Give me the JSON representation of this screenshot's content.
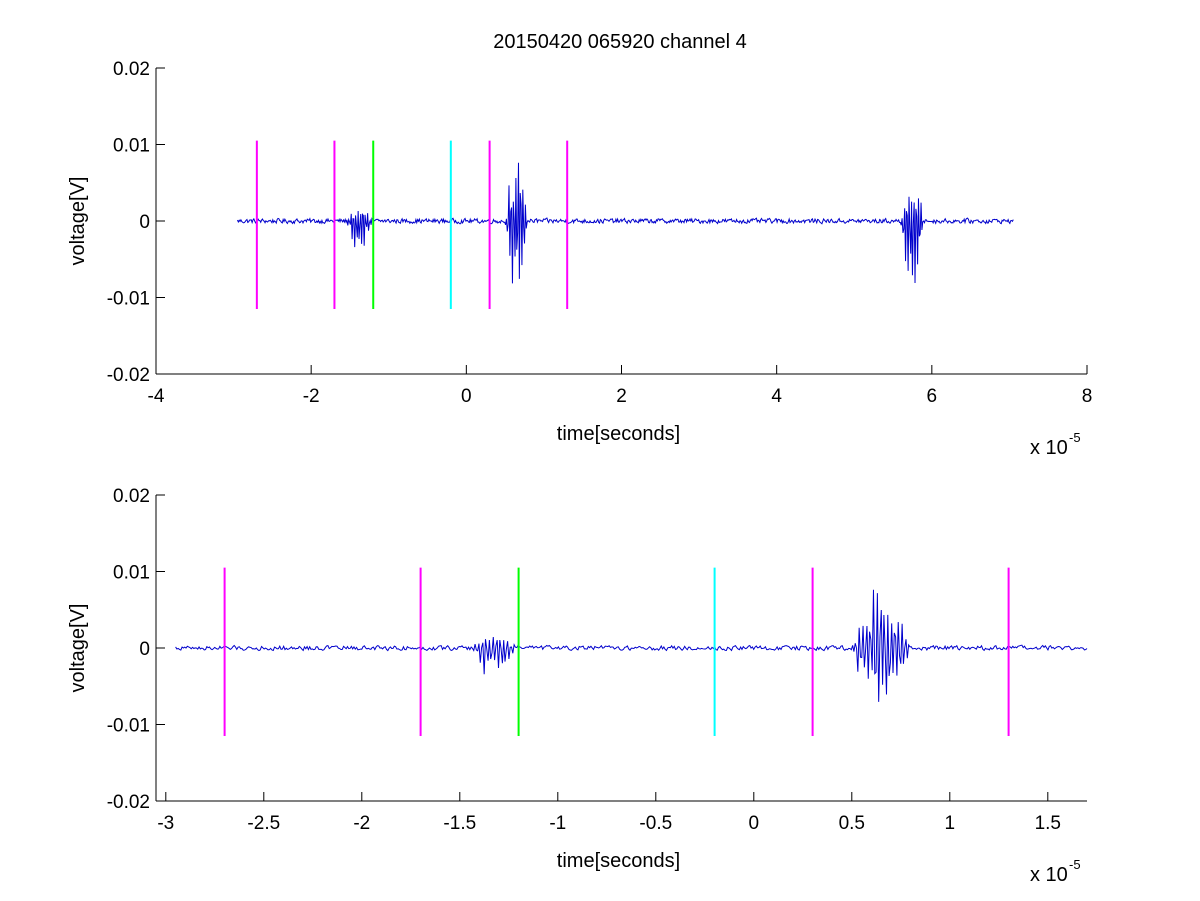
{
  "figure": {
    "title": "20150420 065920 channel 4"
  },
  "chart_data": [
    {
      "type": "line",
      "title": "20150420 065920 channel 4",
      "xlabel": "time[seconds]",
      "ylabel": "voltage[V]",
      "x_multiplier_label": "x 10",
      "x_multiplier_exponent": "-5",
      "xlim": [
        -4,
        8
      ],
      "ylim": [
        -0.02,
        0.02
      ],
      "xticks": [
        -4,
        -2,
        0,
        2,
        4,
        6,
        8
      ],
      "xtick_labels": [
        "-4",
        "-2",
        "0",
        "2",
        "4",
        "6",
        "8"
      ],
      "yticks": [
        0.02,
        0.01,
        0,
        -0.01,
        -0.02
      ],
      "ytick_labels": [
        "0.02",
        "0.01",
        "0",
        "-0.01",
        "-0.02"
      ],
      "grid": false,
      "series_color": "#0000cc",
      "signal": {
        "x_range": [
          -2.95,
          7.05
        ],
        "baseline": 0,
        "noise": 0.0004,
        "bursts": [
          {
            "x": [
              -1.55,
              -1.2
            ],
            "peak_pos": 0.0018,
            "peak_neg": -0.0044
          },
          {
            "x": [
              0.5,
              0.8
            ],
            "peak_pos": 0.0097,
            "peak_neg": -0.0098
          },
          {
            "x": [
              5.6,
              5.9
            ],
            "peak_pos": 0.0058,
            "peak_neg": -0.0104
          }
        ]
      },
      "vlines": [
        {
          "x": -2.7,
          "color": "#ff00ff",
          "ymin": -0.0115,
          "ymax": 0.0105
        },
        {
          "x": -1.7,
          "color": "#ff00ff",
          "ymin": -0.0115,
          "ymax": 0.0105
        },
        {
          "x": -1.2,
          "color": "#00ff00",
          "ymin": -0.0115,
          "ymax": 0.0105
        },
        {
          "x": -0.2,
          "color": "#00ffff",
          "ymin": -0.0115,
          "ymax": 0.0105
        },
        {
          "x": 0.3,
          "color": "#ff00ff",
          "ymin": -0.0115,
          "ymax": 0.0105
        },
        {
          "x": 1.3,
          "color": "#ff00ff",
          "ymin": -0.0115,
          "ymax": 0.0105
        }
      ]
    },
    {
      "type": "line",
      "title": "",
      "xlabel": "time[seconds]",
      "ylabel": "voltage[V]",
      "x_multiplier_label": "x 10",
      "x_multiplier_exponent": "-5",
      "xlim": [
        -3.05,
        1.7
      ],
      "ylim": [
        -0.02,
        0.02
      ],
      "xticks": [
        -3,
        -2.5,
        -2,
        -1.5,
        -1,
        -0.5,
        0,
        0.5,
        1,
        1.5
      ],
      "xtick_labels": [
        "-3",
        "-2.5",
        "-2",
        "-1.5",
        "-1",
        "-0.5",
        "0",
        "0.5",
        "1",
        "1.5"
      ],
      "yticks": [
        0.02,
        0.01,
        0,
        -0.01,
        -0.02
      ],
      "ytick_labels": [
        "0.02",
        "0.01",
        "0",
        "-0.01",
        "-0.02"
      ],
      "grid": false,
      "series_color": "#0000cc",
      "signal": {
        "x_range": [
          -2.95,
          1.7
        ],
        "baseline": 0,
        "noise": 0.0004,
        "bursts": [
          {
            "x": [
              -1.45,
              -1.2
            ],
            "peak_pos": 0.0018,
            "peak_neg": -0.0044
          },
          {
            "x": [
              0.5,
              0.8
            ],
            "peak_pos": 0.0097,
            "peak_neg": -0.0098
          }
        ]
      },
      "vlines": [
        {
          "x": -2.7,
          "color": "#ff00ff",
          "ymin": -0.0115,
          "ymax": 0.0105
        },
        {
          "x": -1.7,
          "color": "#ff00ff",
          "ymin": -0.0115,
          "ymax": 0.0105
        },
        {
          "x": -1.2,
          "color": "#00ff00",
          "ymin": -0.0115,
          "ymax": 0.0105
        },
        {
          "x": -0.2,
          "color": "#00ffff",
          "ymin": -0.0115,
          "ymax": 0.0105
        },
        {
          "x": 0.3,
          "color": "#ff00ff",
          "ymin": -0.0115,
          "ymax": 0.0105
        },
        {
          "x": 1.3,
          "color": "#ff00ff",
          "ymin": -0.0115,
          "ymax": 0.0105
        }
      ]
    }
  ]
}
